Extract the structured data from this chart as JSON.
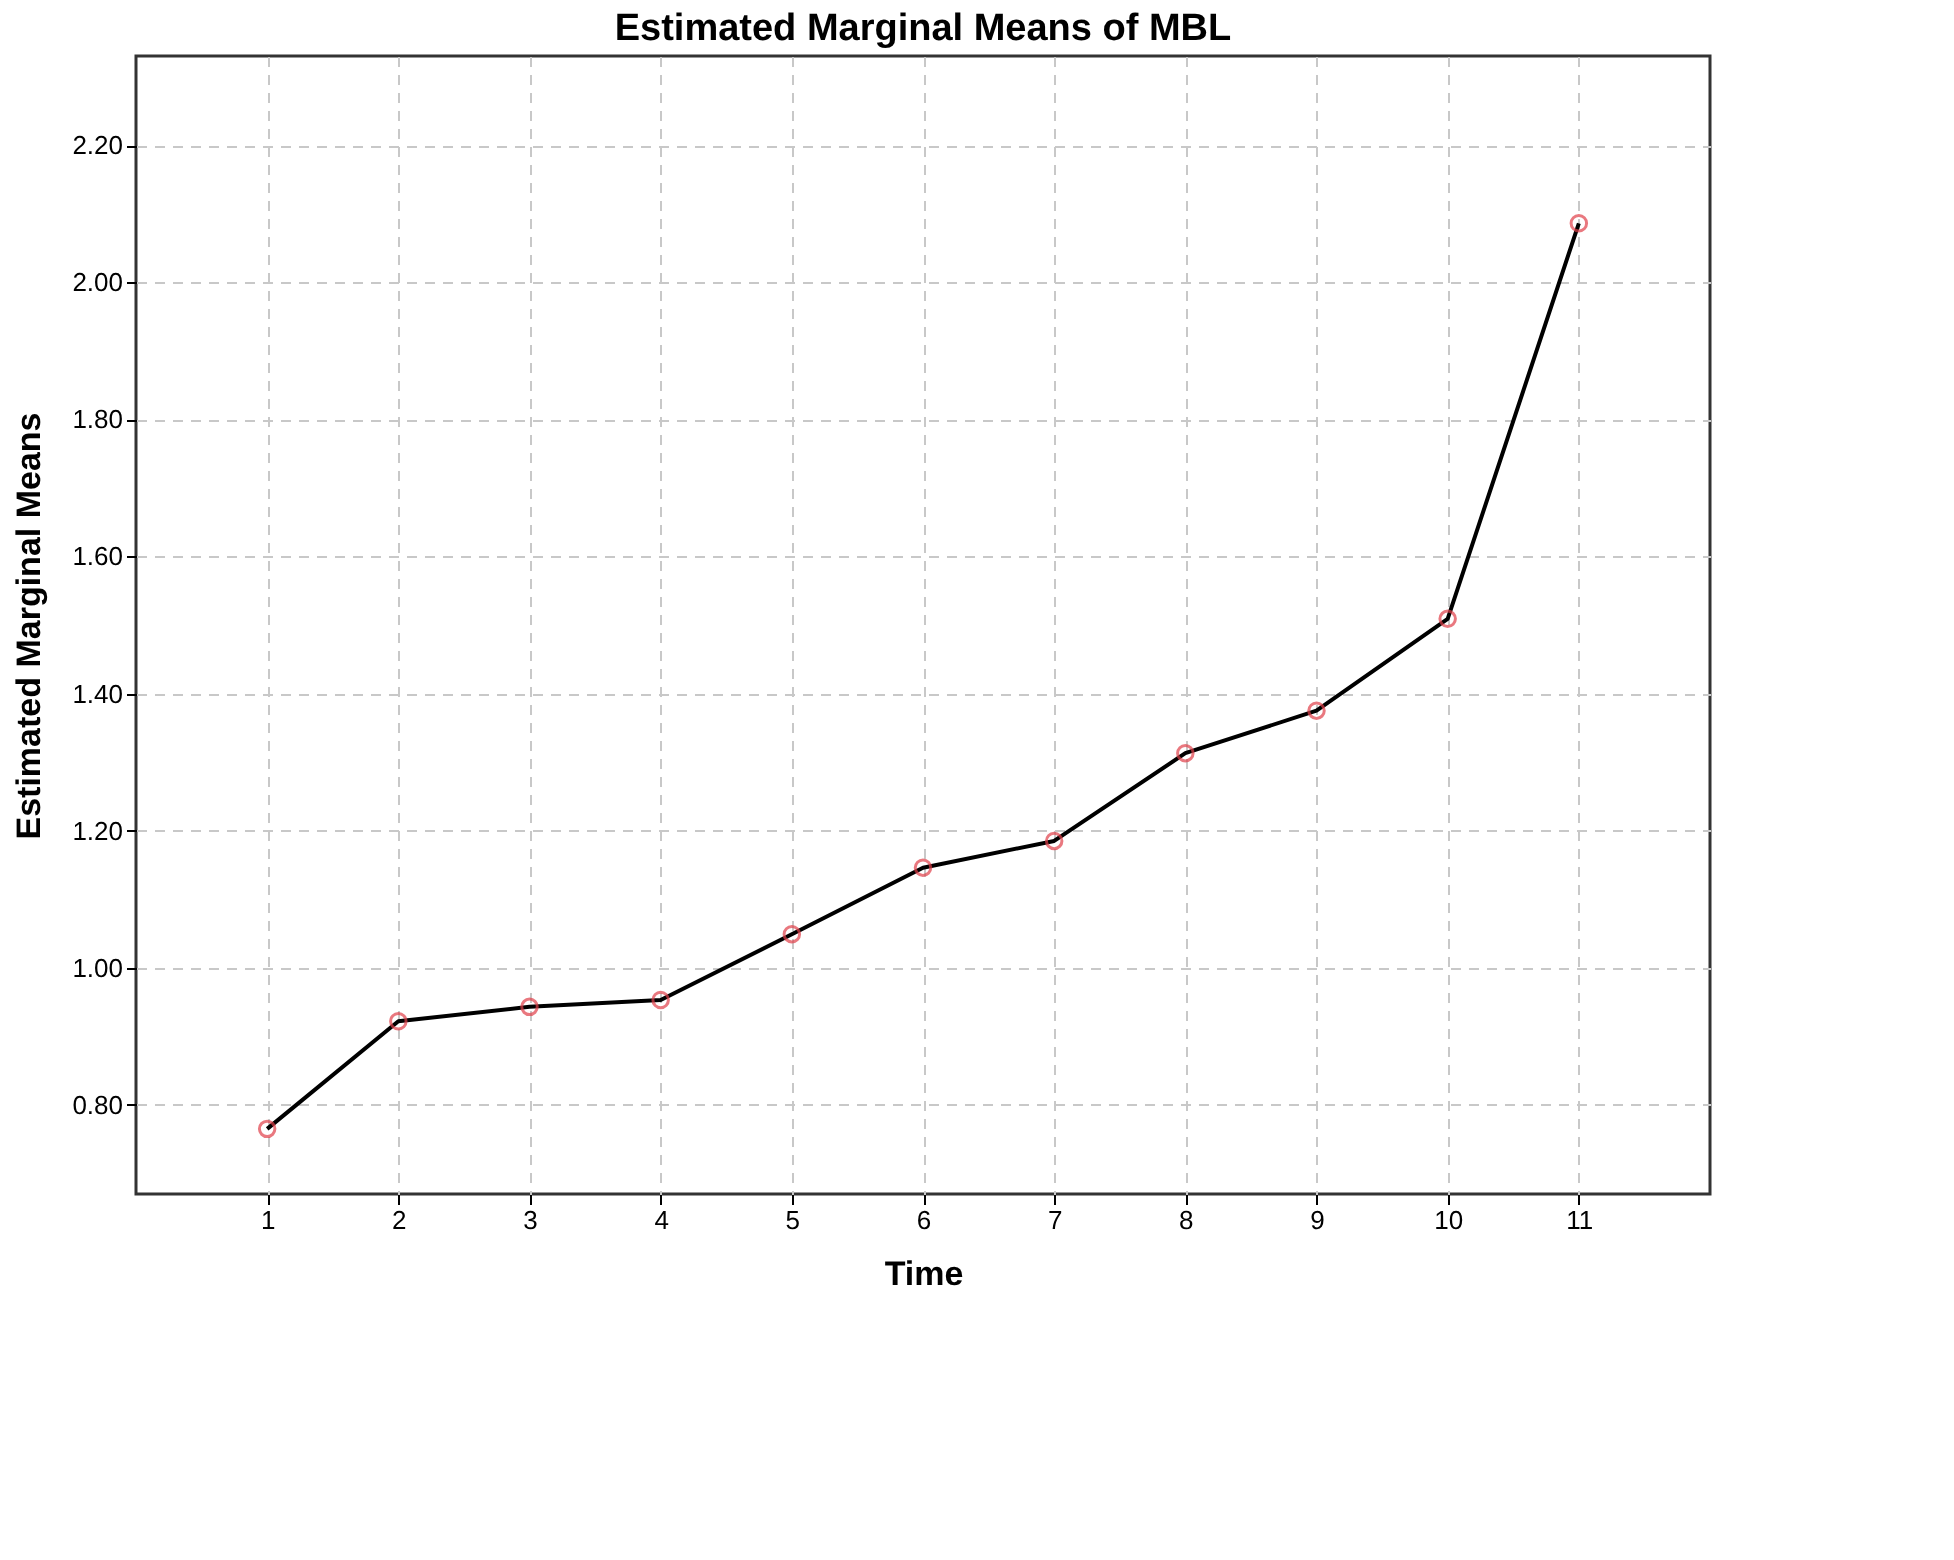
{
  "chart_data": {
    "type": "line",
    "title": "Estimated Marginal Means of MBL",
    "xlabel": "Time",
    "ylabel": "Estimated Marginal Means",
    "categories": [
      "1",
      "2",
      "3",
      "4",
      "5",
      "6",
      "7",
      "8",
      "9",
      "10",
      "11"
    ],
    "series": [
      {
        "color": "#000000",
        "colors": [
          "#e0404a",
          "#e0404a",
          "#e0404a",
          "#e0404a",
          "#e0404a",
          "#e0404a",
          "#e0404a",
          "#e0404a",
          "#e0404a",
          "#e0404a",
          "#e0404a"
        ],
        "values": [
          0.765,
          0.922,
          0.943,
          0.953,
          1.049,
          1.146,
          1.185,
          1.313,
          1.375,
          1.509,
          2.086
        ]
      }
    ],
    "ylim": [
      0.67,
      2.33
    ],
    "yticks": [
      {
        "value": 0.8,
        "label": "0.80"
      },
      {
        "value": 1.0,
        "label": "1.00"
      },
      {
        "value": 1.2,
        "label": "1.20"
      },
      {
        "value": 1.4,
        "label": "1.40"
      },
      {
        "value": 1.6,
        "label": "1.60"
      },
      {
        "value": 1.8,
        "label": "1.80"
      },
      {
        "value": 2.0,
        "label": "2.00"
      },
      {
        "value": 2.2,
        "label": "2.20"
      }
    ],
    "grid": true,
    "marker": "circle",
    "line_style": "solid"
  }
}
